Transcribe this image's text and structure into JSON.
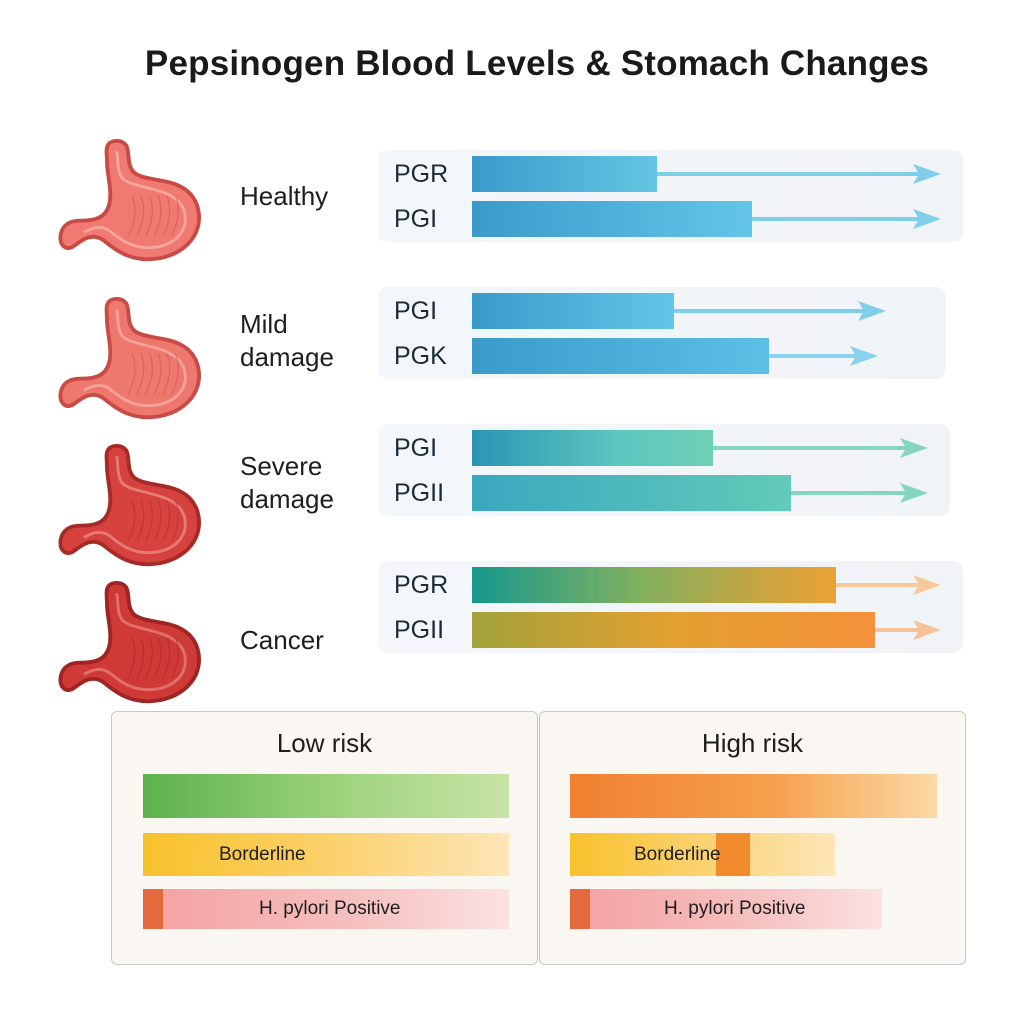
{
  "title": "Pepsinogen Blood Levels & Stomach Changes",
  "stages": [
    {
      "label": "Healthy",
      "stomach": "healthy-stomach-icon",
      "bars": [
        {
          "label": "PGR",
          "level": 0.33
        },
        {
          "label": "PGI",
          "level": 0.5
        }
      ]
    },
    {
      "label": "Mild\ndamage",
      "stomach": "mild-damage-stomach-icon",
      "bars": [
        {
          "label": "PGI",
          "level": 0.36
        },
        {
          "label": "PGK",
          "level": 0.53
        }
      ]
    },
    {
      "label": "Severe\ndamage",
      "stomach": "severe-damage-stomach-icon",
      "bars": [
        {
          "label": "PGI",
          "level": 0.43
        },
        {
          "label": "PGII",
          "level": 0.57
        }
      ]
    },
    {
      "label": "Cancer",
      "stomach": "cancer-stomach-icon",
      "bars": [
        {
          "label": "PGR",
          "level": 0.65
        },
        {
          "label": "PGII",
          "level": 0.72
        }
      ]
    }
  ],
  "risk": {
    "low": {
      "title": "Low risk",
      "bars": [
        {
          "label": "",
          "level": 1.0
        },
        {
          "label": "Borderline",
          "level": 1.0
        },
        {
          "label": "H. pylori Positive",
          "level": 1.0
        }
      ]
    },
    "high": {
      "title": "High risk",
      "bars": [
        {
          "label": "",
          "level": 1.0
        },
        {
          "label": "Borderline",
          "level": 0.72
        },
        {
          "label": "H. pylori Positive",
          "level": 0.85
        }
      ]
    }
  },
  "colors": {
    "blue_dark": "#3a9bcb",
    "blue_light": "#62c6e8",
    "teal": "#52c2b3",
    "green": "#5cb24d",
    "yellow": "#f8c22b",
    "orange": "#f28a2e",
    "pink": "#f18b8b"
  }
}
